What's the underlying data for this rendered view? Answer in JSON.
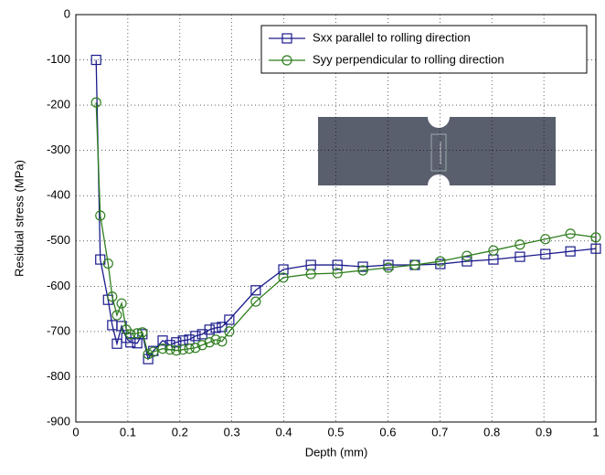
{
  "chart_data": {
    "type": "line",
    "xlabel": "Depth (mm)",
    "ylabel": "Residual stress (MPa)",
    "xlim": [
      0,
      1
    ],
    "ylim": [
      -900,
      0
    ],
    "xticks": [
      0,
      0.1,
      0.2,
      0.3,
      0.4,
      0.5,
      0.6,
      0.7,
      0.8,
      0.9,
      1
    ],
    "yticks": [
      -900,
      -800,
      -700,
      -600,
      -500,
      -400,
      -300,
      -200,
      -100,
      0
    ],
    "legend": "upper right",
    "series": [
      {
        "name": "Sxx parallel to rolling direction",
        "color": "#1a1a8c",
        "marker": "square",
        "x": [
          0.039,
          0.047,
          0.062,
          0.07,
          0.079,
          0.088,
          0.097,
          0.105,
          0.118,
          0.128,
          0.139,
          0.149,
          0.167,
          0.181,
          0.193,
          0.206,
          0.218,
          0.23,
          0.243,
          0.257,
          0.269,
          0.281,
          0.295,
          0.346,
          0.399,
          0.452,
          0.503,
          0.552,
          0.601,
          0.652,
          0.701,
          0.752,
          0.803,
          0.854,
          0.903,
          0.951,
          1
        ],
        "values": [
          -100,
          -541,
          -630,
          -686,
          -727,
          -688,
          -714,
          -724,
          -726,
          -706,
          -761,
          -743,
          -720,
          -730,
          -724,
          -720,
          -718,
          -710,
          -706,
          -696,
          -692,
          -690,
          -674,
          -609,
          -563,
          -553,
          -553,
          -557,
          -553,
          -553,
          -551,
          -545,
          -541,
          -535,
          -529,
          -523,
          -517
        ]
      },
      {
        "name": "Syy perpendicular to rolling direction",
        "color": "#2e7d1e",
        "marker": "circle",
        "x": [
          0.039,
          0.047,
          0.062,
          0.07,
          0.079,
          0.088,
          0.097,
          0.105,
          0.118,
          0.128,
          0.139,
          0.149,
          0.167,
          0.181,
          0.193,
          0.206,
          0.218,
          0.23,
          0.243,
          0.257,
          0.269,
          0.281,
          0.295,
          0.346,
          0.399,
          0.452,
          0.503,
          0.552,
          0.601,
          0.652,
          0.701,
          0.752,
          0.803,
          0.854,
          0.903,
          0.951,
          1
        ],
        "values": [
          -194,
          -444,
          -550,
          -623,
          -664,
          -638,
          -696,
          -706,
          -704,
          -702,
          -750,
          -745,
          -738,
          -740,
          -742,
          -740,
          -738,
          -736,
          -730,
          -724,
          -718,
          -722,
          -700,
          -634,
          -581,
          -573,
          -571,
          -565,
          -559,
          -553,
          -545,
          -533,
          -521,
          -508,
          -496,
          -484,
          -492
        ]
      }
    ]
  }
}
